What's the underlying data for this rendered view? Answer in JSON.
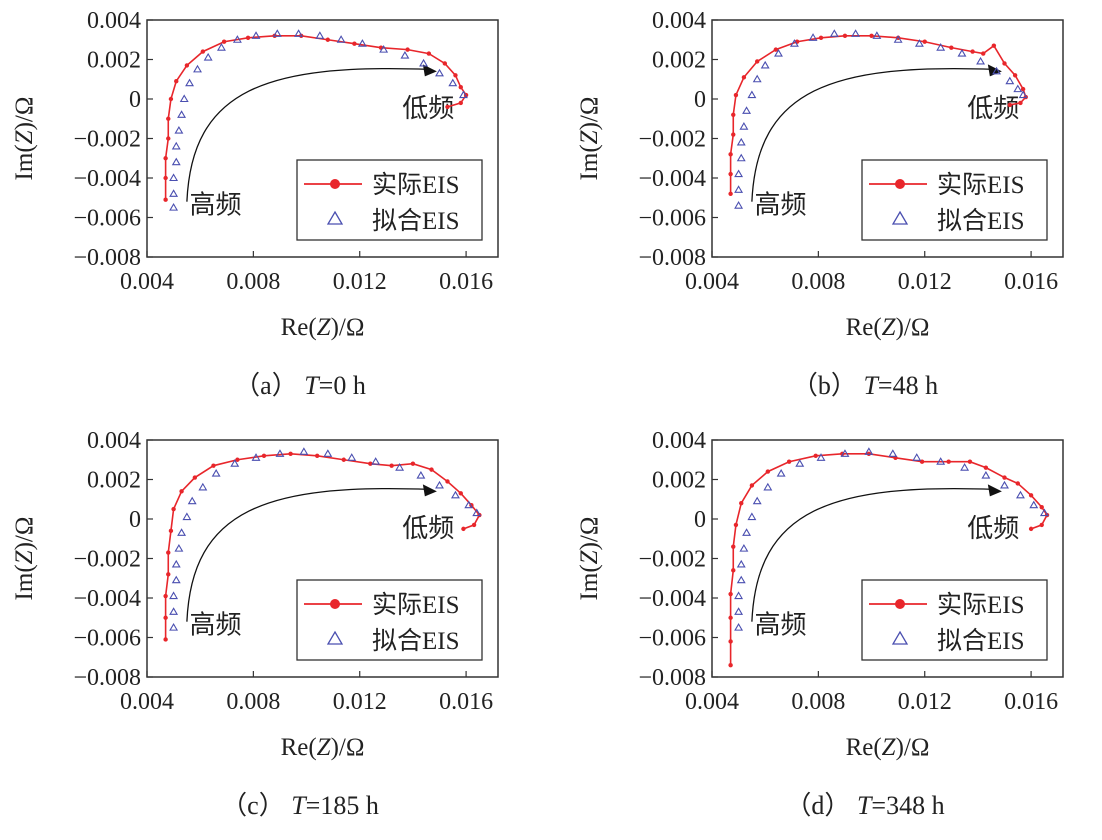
{
  "chart_data": [
    {
      "type": "scatter",
      "caption": {
        "label": "（a）",
        "var": "T",
        "rest": "=0 h"
      },
      "xlabel": {
        "pre": "Re(",
        "var": "Z",
        "post": ")/Ω"
      },
      "ylabel": {
        "pre": "Im(",
        "var": "Z",
        "post": ")/Ω"
      },
      "xlim": [
        0.004,
        0.0172
      ],
      "ylim": [
        -0.008,
        0.004
      ],
      "xticks": [
        "0.004",
        "0.008",
        "0.012",
        "0.016"
      ],
      "xtick_values": [
        0.004,
        0.008,
        0.012,
        0.016
      ],
      "yticks": [
        "0.004",
        "0.002",
        "0",
        "−0.002",
        "−0.004",
        "−0.006",
        "−0.008"
      ],
      "ytick_values": [
        0.004,
        0.002,
        0,
        -0.002,
        -0.004,
        -0.006,
        -0.008
      ],
      "annotations": {
        "high": "高频",
        "low": "低频"
      },
      "series": [
        {
          "name": "实际EIS",
          "color": "#e8262b",
          "marker": "circle",
          "points": [
            [
              0.0047,
              -0.0051
            ],
            [
              0.0047,
              -0.004
            ],
            [
              0.0047,
              -0.003
            ],
            [
              0.0048,
              -0.002
            ],
            [
              0.0048,
              -0.001
            ],
            [
              0.0049,
              0
            ],
            [
              0.0051,
              0.0009
            ],
            [
              0.0055,
              0.0017
            ],
            [
              0.0061,
              0.0024
            ],
            [
              0.0069,
              0.0029
            ],
            [
              0.0078,
              0.0031
            ],
            [
              0.0088,
              0.0032
            ],
            [
              0.0098,
              0.0032
            ],
            [
              0.0108,
              0.003
            ],
            [
              0.0118,
              0.0028
            ],
            [
              0.0128,
              0.0026
            ],
            [
              0.0138,
              0.0025
            ],
            [
              0.0146,
              0.0023
            ],
            [
              0.0152,
              0.0018
            ],
            [
              0.0156,
              0.0012
            ],
            [
              0.0158,
              0.0006
            ],
            [
              0.016,
              0.0002
            ],
            [
              0.0158,
              -0.0002
            ],
            [
              0.0153,
              -0.0004
            ]
          ]
        },
        {
          "name": "拟合EIS",
          "color": "#4a4fb0",
          "marker": "triangle",
          "points": [
            [
              0.005,
              -0.0055
            ],
            [
              0.005,
              -0.0048
            ],
            [
              0.005,
              -0.004
            ],
            [
              0.0051,
              -0.0032
            ],
            [
              0.0051,
              -0.0024
            ],
            [
              0.0052,
              -0.0016
            ],
            [
              0.0053,
              -0.0008
            ],
            [
              0.0054,
              0
            ],
            [
              0.0056,
              0.0008
            ],
            [
              0.0059,
              0.0015
            ],
            [
              0.0063,
              0.0021
            ],
            [
              0.0068,
              0.0026
            ],
            [
              0.0074,
              0.003
            ],
            [
              0.0081,
              0.0032
            ],
            [
              0.0089,
              0.0033
            ],
            [
              0.0097,
              0.0033
            ],
            [
              0.0105,
              0.0032
            ],
            [
              0.0113,
              0.003
            ],
            [
              0.0121,
              0.0028
            ],
            [
              0.0129,
              0.0025
            ],
            [
              0.0137,
              0.0022
            ],
            [
              0.0144,
              0.0018
            ],
            [
              0.015,
              0.0013
            ],
            [
              0.0155,
              0.0008
            ],
            [
              0.0159,
              0.0002
            ]
          ]
        }
      ]
    },
    {
      "type": "scatter",
      "caption": {
        "label": "（b）",
        "var": "T",
        "rest": "=48 h"
      },
      "xlabel": {
        "pre": "Re(",
        "var": "Z",
        "post": ")/Ω"
      },
      "ylabel": {
        "pre": "Im(",
        "var": "Z",
        "post": ")/Ω"
      },
      "xlim": [
        0.004,
        0.0172
      ],
      "ylim": [
        -0.008,
        0.004
      ],
      "xticks": [
        "0.004",
        "0.008",
        "0.012",
        "0.016"
      ],
      "xtick_values": [
        0.004,
        0.008,
        0.012,
        0.016
      ],
      "yticks": [
        "0.004",
        "0.002",
        "0",
        "−0.002",
        "−0.004",
        "−0.006",
        "−0.008"
      ],
      "ytick_values": [
        0.004,
        0.002,
        0,
        -0.002,
        -0.004,
        -0.006,
        -0.008
      ],
      "annotations": {
        "high": "高频",
        "low": "低频"
      },
      "series": [
        {
          "name": "实际EIS",
          "color": "#e8262b",
          "marker": "circle",
          "points": [
            [
              0.0047,
              -0.0048
            ],
            [
              0.0047,
              -0.0038
            ],
            [
              0.0047,
              -0.0028
            ],
            [
              0.0048,
              -0.0018
            ],
            [
              0.0048,
              -0.0008
            ],
            [
              0.0049,
              0.0002
            ],
            [
              0.0052,
              0.0011
            ],
            [
              0.0057,
              0.0019
            ],
            [
              0.0064,
              0.0025
            ],
            [
              0.0072,
              0.0029
            ],
            [
              0.0081,
              0.0031
            ],
            [
              0.009,
              0.0032
            ],
            [
              0.01,
              0.0032
            ],
            [
              0.011,
              0.0031
            ],
            [
              0.012,
              0.0029
            ],
            [
              0.013,
              0.0026
            ],
            [
              0.0138,
              0.0024
            ],
            [
              0.0142,
              0.0023
            ],
            [
              0.0146,
              0.0027
            ],
            [
              0.015,
              0.0018
            ],
            [
              0.0154,
              0.0012
            ],
            [
              0.0157,
              0.0005
            ],
            [
              0.0158,
              0.0001
            ],
            [
              0.0156,
              -0.0002
            ],
            [
              0.0152,
              -0.0003
            ]
          ]
        },
        {
          "name": "拟合EIS",
          "color": "#4a4fb0",
          "marker": "triangle",
          "points": [
            [
              0.005,
              -0.0054
            ],
            [
              0.005,
              -0.0046
            ],
            [
              0.005,
              -0.0038
            ],
            [
              0.0051,
              -0.003
            ],
            [
              0.0051,
              -0.0022
            ],
            [
              0.0052,
              -0.0014
            ],
            [
              0.0053,
              -0.0006
            ],
            [
              0.0055,
              0.0002
            ],
            [
              0.0057,
              0.001
            ],
            [
              0.006,
              0.0017
            ],
            [
              0.0065,
              0.0023
            ],
            [
              0.0071,
              0.0028
            ],
            [
              0.0078,
              0.0031
            ],
            [
              0.0086,
              0.0033
            ],
            [
              0.0094,
              0.0033
            ],
            [
              0.0102,
              0.0032
            ],
            [
              0.011,
              0.003
            ],
            [
              0.0118,
              0.0028
            ],
            [
              0.0126,
              0.0026
            ],
            [
              0.0134,
              0.0023
            ],
            [
              0.0141,
              0.0019
            ],
            [
              0.0147,
              0.0014
            ],
            [
              0.0152,
              0.0009
            ],
            [
              0.0155,
              0.0005
            ],
            [
              0.0157,
              0.0002
            ]
          ]
        }
      ]
    },
    {
      "type": "scatter",
      "caption": {
        "label": "（c）",
        "var": "T",
        "rest": "=185 h"
      },
      "xlabel": {
        "pre": "Re(",
        "var": "Z",
        "post": ")/Ω"
      },
      "ylabel": {
        "pre": "Im(",
        "var": "Z",
        "post": ")/Ω"
      },
      "xlim": [
        0.004,
        0.0172
      ],
      "ylim": [
        -0.008,
        0.004
      ],
      "xticks": [
        "0.004",
        "0.008",
        "0.012",
        "0.016"
      ],
      "xtick_values": [
        0.004,
        0.008,
        0.012,
        0.016
      ],
      "yticks": [
        "0.004",
        "0.002",
        "0",
        "−0.002",
        "−0.004",
        "−0.006",
        "−0.008"
      ],
      "ytick_values": [
        0.004,
        0.002,
        0,
        -0.002,
        -0.004,
        -0.006,
        -0.008
      ],
      "annotations": {
        "high": "高频",
        "low": "低频"
      },
      "series": [
        {
          "name": "实际EIS",
          "color": "#e8262b",
          "marker": "circle",
          "points": [
            [
              0.0047,
              -0.0061
            ],
            [
              0.0047,
              -0.005
            ],
            [
              0.0047,
              -0.0039
            ],
            [
              0.0048,
              -0.0028
            ],
            [
              0.0048,
              -0.0017
            ],
            [
              0.0049,
              -0.0006
            ],
            [
              0.005,
              0.0005
            ],
            [
              0.0053,
              0.0014
            ],
            [
              0.0058,
              0.0021
            ],
            [
              0.0065,
              0.0027
            ],
            [
              0.0074,
              0.003
            ],
            [
              0.0084,
              0.0032
            ],
            [
              0.0094,
              0.0033
            ],
            [
              0.0104,
              0.0032
            ],
            [
              0.0114,
              0.003
            ],
            [
              0.0124,
              0.0028
            ],
            [
              0.0132,
              0.0027
            ],
            [
              0.014,
              0.0028
            ],
            [
              0.0147,
              0.0025
            ],
            [
              0.0153,
              0.0019
            ],
            [
              0.0158,
              0.0013
            ],
            [
              0.0162,
              0.0007
            ],
            [
              0.0165,
              0.0002
            ],
            [
              0.0163,
              -0.0003
            ],
            [
              0.0159,
              -0.0005
            ]
          ]
        },
        {
          "name": "拟合EIS",
          "color": "#4a4fb0",
          "marker": "triangle",
          "points": [
            [
              0.005,
              -0.0055
            ],
            [
              0.005,
              -0.0047
            ],
            [
              0.005,
              -0.0039
            ],
            [
              0.0051,
              -0.0031
            ],
            [
              0.0051,
              -0.0023
            ],
            [
              0.0052,
              -0.0015
            ],
            [
              0.0053,
              -0.0007
            ],
            [
              0.0055,
              0.0001
            ],
            [
              0.0057,
              0.0009
            ],
            [
              0.0061,
              0.0016
            ],
            [
              0.0066,
              0.0023
            ],
            [
              0.0073,
              0.0028
            ],
            [
              0.0081,
              0.0031
            ],
            [
              0.009,
              0.0033
            ],
            [
              0.0099,
              0.0034
            ],
            [
              0.0108,
              0.0033
            ],
            [
              0.0117,
              0.0031
            ],
            [
              0.0126,
              0.0029
            ],
            [
              0.0135,
              0.0026
            ],
            [
              0.0143,
              0.0022
            ],
            [
              0.015,
              0.0017
            ],
            [
              0.0156,
              0.0012
            ],
            [
              0.0161,
              0.0007
            ],
            [
              0.0164,
              0.0003
            ]
          ]
        }
      ]
    },
    {
      "type": "scatter",
      "caption": {
        "label": "（d）",
        "var": "T",
        "rest": "=348 h"
      },
      "xlabel": {
        "pre": "Re(",
        "var": "Z",
        "post": ")/Ω"
      },
      "ylabel": {
        "pre": "Im(",
        "var": "Z",
        "post": ")/Ω"
      },
      "xlim": [
        0.004,
        0.0172
      ],
      "ylim": [
        -0.008,
        0.004
      ],
      "xticks": [
        "0.004",
        "0.008",
        "0.012",
        "0.016"
      ],
      "xtick_values": [
        0.004,
        0.008,
        0.012,
        0.016
      ],
      "yticks": [
        "0.004",
        "0.002",
        "0",
        "−0.002",
        "−0.004",
        "−0.006",
        "−0.008"
      ],
      "ytick_values": [
        0.004,
        0.002,
        0,
        -0.002,
        -0.004,
        -0.006,
        -0.008
      ],
      "annotations": {
        "high": "高频",
        "low": "低频"
      },
      "series": [
        {
          "name": "实际EIS",
          "color": "#e8262b",
          "marker": "circle",
          "points": [
            [
              0.0047,
              -0.0074
            ],
            [
              0.0047,
              -0.0062
            ],
            [
              0.0047,
              -0.005
            ],
            [
              0.0047,
              -0.0038
            ],
            [
              0.0048,
              -0.0026
            ],
            [
              0.0048,
              -0.0014
            ],
            [
              0.0049,
              -0.0003
            ],
            [
              0.0051,
              0.0008
            ],
            [
              0.0055,
              0.0017
            ],
            [
              0.0061,
              0.0024
            ],
            [
              0.0069,
              0.0029
            ],
            [
              0.0079,
              0.0032
            ],
            [
              0.0089,
              0.0033
            ],
            [
              0.0099,
              0.0033
            ],
            [
              0.0109,
              0.0031
            ],
            [
              0.0119,
              0.0029
            ],
            [
              0.0129,
              0.0029
            ],
            [
              0.0137,
              0.0029
            ],
            [
              0.0143,
              0.0026
            ],
            [
              0.015,
              0.0021
            ],
            [
              0.0155,
              0.0018
            ],
            [
              0.016,
              0.0012
            ],
            [
              0.0164,
              0.0006
            ],
            [
              0.0166,
              0.0002
            ],
            [
              0.0164,
              -0.0003
            ],
            [
              0.016,
              -0.0005
            ]
          ]
        },
        {
          "name": "拟合EIS",
          "color": "#4a4fb0",
          "marker": "triangle",
          "points": [
            [
              0.005,
              -0.0055
            ],
            [
              0.005,
              -0.0047
            ],
            [
              0.005,
              -0.0039
            ],
            [
              0.0051,
              -0.0031
            ],
            [
              0.0051,
              -0.0023
            ],
            [
              0.0052,
              -0.0015
            ],
            [
              0.0053,
              -0.0007
            ],
            [
              0.0055,
              0.0001
            ],
            [
              0.0057,
              0.0009
            ],
            [
              0.0061,
              0.0016
            ],
            [
              0.0066,
              0.0023
            ],
            [
              0.0073,
              0.0028
            ],
            [
              0.0081,
              0.0031
            ],
            [
              0.009,
              0.0033
            ],
            [
              0.0099,
              0.0034
            ],
            [
              0.0108,
              0.0033
            ],
            [
              0.0117,
              0.0031
            ],
            [
              0.0126,
              0.0029
            ],
            [
              0.0135,
              0.0026
            ],
            [
              0.0143,
              0.0022
            ],
            [
              0.015,
              0.0017
            ],
            [
              0.0156,
              0.0012
            ],
            [
              0.0161,
              0.0007
            ],
            [
              0.0165,
              0.0003
            ]
          ]
        }
      ]
    }
  ]
}
